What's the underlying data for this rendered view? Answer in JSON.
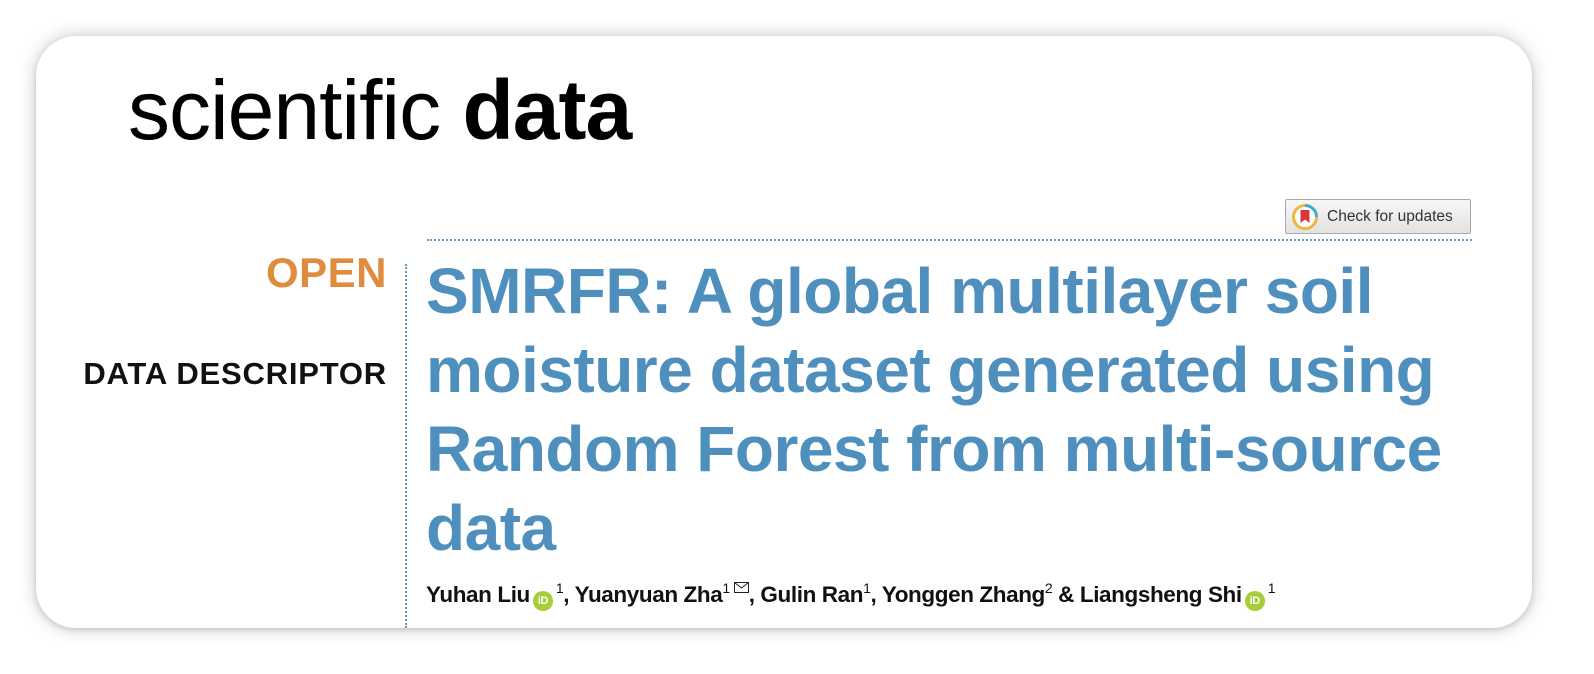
{
  "journal": {
    "name_light": "scientific",
    "name_bold": "data"
  },
  "check_updates": {
    "label": "Check for updates",
    "icon": "crossmark-icon"
  },
  "labels": {
    "open": "OPEN",
    "type": "DATA DESCRIPTOR"
  },
  "colors": {
    "title": "#4f8fbd",
    "open": "#e08c3c",
    "orcid": "#a6ce39",
    "rule": "#6a9bbf"
  },
  "title": "SMRFR: A global multilayer soil moisture dataset generated using Random Forest from multi-source data",
  "authors": [
    {
      "name": "Yuhan Liu",
      "orcid": true,
      "affil": "1",
      "sep": ", "
    },
    {
      "name": "Yuanyuan Zha",
      "orcid": false,
      "affil": "1",
      "email": true,
      "sep": ", "
    },
    {
      "name": "Gulin Ran",
      "orcid": false,
      "affil": "1",
      "sep": ", "
    },
    {
      "name": "Yonggen Zhang",
      "orcid": false,
      "affil": "2",
      "sep": " & "
    },
    {
      "name": "Liangsheng Shi",
      "orcid": true,
      "affil": "1",
      "sep": ""
    }
  ],
  "orcid_icon_text": "iD"
}
